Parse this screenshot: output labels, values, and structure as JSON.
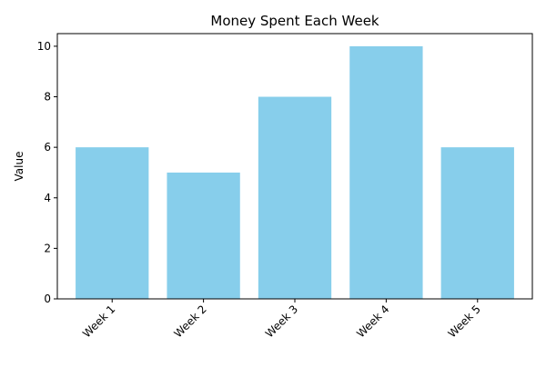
{
  "chart_data": {
    "type": "bar",
    "title": "Money Spent Each Week",
    "xlabel": "",
    "ylabel": "Value",
    "categories": [
      "Week 1",
      "Week 2",
      "Week 3",
      "Week 4",
      "Week 5"
    ],
    "values": [
      6,
      5,
      8,
      10,
      6
    ],
    "ylim": [
      0,
      10.5
    ],
    "yticks": [
      0,
      2,
      4,
      6,
      8,
      10
    ],
    "grid": false,
    "legend": "none",
    "bar_color": "#87CEEB",
    "xtick_rotation_deg": 45
  }
}
